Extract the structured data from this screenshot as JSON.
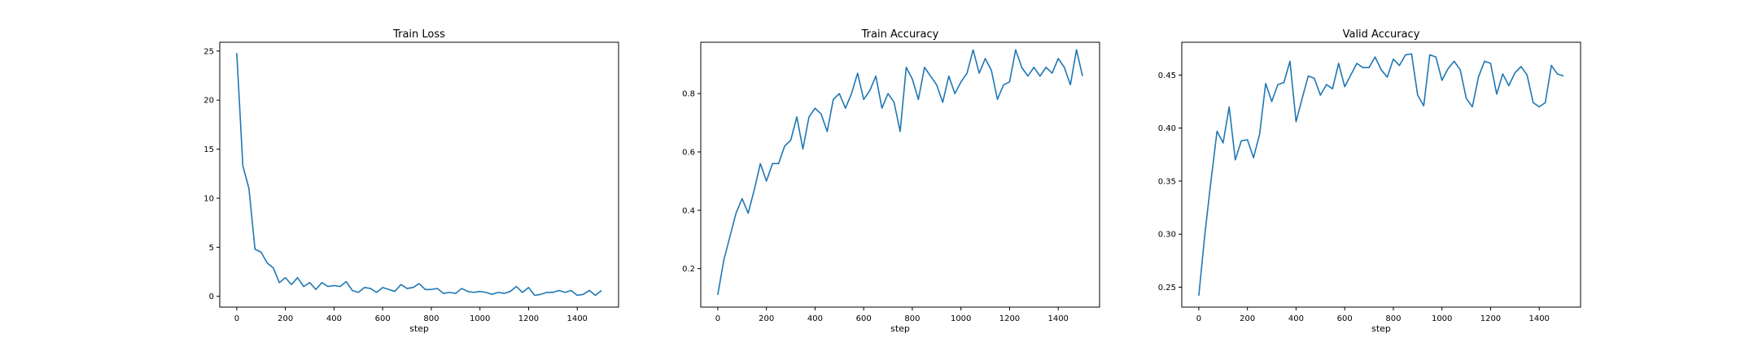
{
  "chart_data": [
    {
      "type": "line",
      "title": "Train Loss",
      "xlabel": "step",
      "ylabel": "",
      "xlim": [
        -70,
        1570
      ],
      "ylim": [
        -1.1,
        25.9
      ],
      "xticks": [
        0,
        200,
        400,
        600,
        800,
        1000,
        1200,
        1400
      ],
      "yticks": [
        0,
        5,
        10,
        15,
        20,
        25
      ],
      "ytick_labels": [
        "0",
        "5",
        "10",
        "15",
        "20",
        "25"
      ],
      "grid": false,
      "color": "#1f77b4",
      "series": [
        {
          "x": [
            0,
            25,
            50,
            75,
            100,
            125,
            150,
            175,
            200,
            225,
            250,
            275,
            300,
            325,
            350,
            375,
            400,
            425,
            450,
            475,
            500,
            525,
            550,
            575,
            600,
            625,
            650,
            675,
            700,
            725,
            750,
            775,
            800,
            825,
            850,
            875,
            900,
            925,
            950,
            975,
            1000,
            1025,
            1050,
            1075,
            1100,
            1125,
            1150,
            1175,
            1200,
            1225,
            1250,
            1275,
            1300,
            1325,
            1350,
            1375,
            1400,
            1425,
            1450,
            1475,
            1500
          ],
          "y": [
            24.8,
            13.3,
            11.0,
            4.8,
            4.5,
            3.4,
            2.9,
            1.4,
            1.9,
            1.2,
            1.9,
            1.0,
            1.4,
            0.7,
            1.4,
            1.0,
            1.1,
            1.0,
            1.5,
            0.6,
            0.4,
            0.9,
            0.8,
            0.4,
            0.9,
            0.7,
            0.5,
            1.2,
            0.8,
            0.9,
            1.3,
            0.7,
            0.7,
            0.8,
            0.3,
            0.4,
            0.3,
            0.8,
            0.5,
            0.4,
            0.5,
            0.4,
            0.2,
            0.4,
            0.3,
            0.5,
            1.0,
            0.4,
            0.9,
            0.1,
            0.2,
            0.4,
            0.4,
            0.6,
            0.4,
            0.6,
            0.1,
            0.2,
            0.6,
            0.1,
            0.6
          ]
        }
      ]
    },
    {
      "type": "line",
      "title": "Train Accuracy",
      "xlabel": "step",
      "ylabel": "",
      "xlim": [
        -70,
        1570
      ],
      "ylim": [
        0.068,
        0.976
      ],
      "xticks": [
        0,
        200,
        400,
        600,
        800,
        1000,
        1200,
        1400
      ],
      "yticks": [
        0.2,
        0.4,
        0.6,
        0.8
      ],
      "ytick_labels": [
        "0.2",
        "0.4",
        "0.6",
        "0.8"
      ],
      "grid": false,
      "color": "#1f77b4",
      "series": [
        {
          "x": [
            0,
            25,
            50,
            75,
            100,
            125,
            150,
            175,
            200,
            225,
            250,
            275,
            300,
            325,
            350,
            375,
            400,
            425,
            450,
            475,
            500,
            525,
            550,
            575,
            600,
            625,
            650,
            675,
            700,
            725,
            750,
            775,
            800,
            825,
            850,
            875,
            900,
            925,
            950,
            975,
            1000,
            1025,
            1050,
            1075,
            1100,
            1125,
            1150,
            1175,
            1200,
            1225,
            1250,
            1275,
            1300,
            1325,
            1350,
            1375,
            1400,
            1425,
            1450,
            1475,
            1500
          ],
          "y": [
            0.11,
            0.23,
            0.31,
            0.39,
            0.44,
            0.39,
            0.47,
            0.56,
            0.5,
            0.56,
            0.56,
            0.62,
            0.64,
            0.72,
            0.61,
            0.72,
            0.75,
            0.73,
            0.67,
            0.78,
            0.8,
            0.75,
            0.8,
            0.87,
            0.78,
            0.81,
            0.86,
            0.75,
            0.8,
            0.77,
            0.67,
            0.89,
            0.85,
            0.78,
            0.89,
            0.86,
            0.83,
            0.77,
            0.86,
            0.8,
            0.84,
            0.87,
            0.95,
            0.87,
            0.92,
            0.88,
            0.78,
            0.83,
            0.84,
            0.95,
            0.89,
            0.86,
            0.89,
            0.86,
            0.89,
            0.87,
            0.92,
            0.89,
            0.83,
            0.95,
            0.86
          ]
        }
      ]
    },
    {
      "type": "line",
      "title": "Valid Accuracy",
      "xlabel": "step",
      "ylabel": "",
      "xlim": [
        -70,
        1570
      ],
      "ylim": [
        0.2312,
        0.4809
      ],
      "xticks": [
        0,
        200,
        400,
        600,
        800,
        1000,
        1200,
        1400
      ],
      "yticks": [
        0.25,
        0.3,
        0.35,
        0.4,
        0.45
      ],
      "ytick_labels": [
        "0.25",
        "0.30",
        "0.35",
        "0.40",
        "0.45"
      ],
      "grid": false,
      "color": "#1f77b4",
      "series": [
        {
          "x": [
            0,
            25,
            50,
            75,
            100,
            125,
            150,
            175,
            200,
            225,
            250,
            275,
            300,
            325,
            350,
            375,
            400,
            425,
            450,
            475,
            500,
            525,
            550,
            575,
            600,
            625,
            650,
            675,
            700,
            725,
            750,
            775,
            800,
            825,
            850,
            875,
            900,
            925,
            950,
            975,
            1000,
            1025,
            1050,
            1075,
            1100,
            1125,
            1150,
            1175,
            1200,
            1225,
            1250,
            1275,
            1300,
            1325,
            1350,
            1375,
            1400,
            1425,
            1450,
            1475,
            1500
          ],
          "y": [
            0.242,
            0.3,
            0.35,
            0.397,
            0.386,
            0.42,
            0.37,
            0.388,
            0.389,
            0.372,
            0.394,
            0.442,
            0.425,
            0.441,
            0.443,
            0.463,
            0.406,
            0.428,
            0.449,
            0.447,
            0.431,
            0.441,
            0.437,
            0.461,
            0.439,
            0.45,
            0.461,
            0.457,
            0.457,
            0.467,
            0.455,
            0.448,
            0.465,
            0.459,
            0.469,
            0.47,
            0.431,
            0.421,
            0.469,
            0.467,
            0.445,
            0.456,
            0.463,
            0.455,
            0.428,
            0.42,
            0.448,
            0.463,
            0.461,
            0.432,
            0.451,
            0.44,
            0.452,
            0.458,
            0.45,
            0.424,
            0.42,
            0.424,
            0.459,
            0.451,
            0.449
          ]
        }
      ]
    }
  ]
}
